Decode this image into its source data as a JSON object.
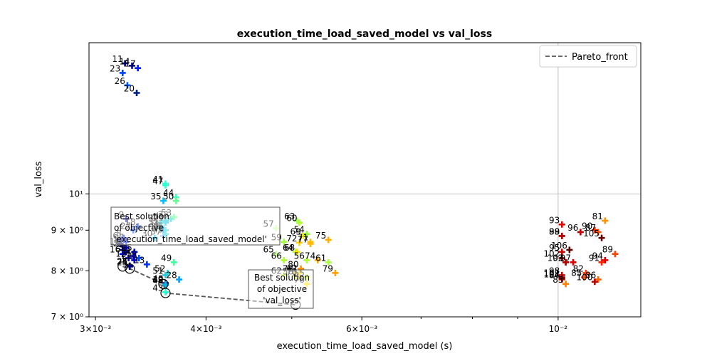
{
  "chart_data": {
    "type": "scatter",
    "title": "execution_time_load_saved_model vs val_loss",
    "xlabel": "execution_time_load_saved_model (s)",
    "ylabel": "val_loss",
    "xscale": "log",
    "yscale": "log",
    "xlim": [
      0.00295,
      0.0124
    ],
    "ylim": [
      7.0,
      15.5
    ],
    "grid": "major",
    "xticks": [
      {
        "value": 0.003,
        "label": "3×10⁻³"
      },
      {
        "value": 0.004,
        "label": "4×10⁻³"
      },
      {
        "value": 0.006,
        "label": "6×10⁻³"
      },
      {
        "value": 0.01,
        "label": "10⁻²"
      }
    ],
    "yticks": [
      {
        "value": 7,
        "label": "7 × 10⁰"
      },
      {
        "value": 8,
        "label": "8 × 10⁰"
      },
      {
        "value": 9,
        "label": "9 × 10⁰"
      },
      {
        "value": 10,
        "label": "10¹"
      }
    ],
    "legend": {
      "placement": "top-right",
      "entries": [
        "Pareto_front"
      ]
    },
    "pareto_front": [
      {
        "x": 0.00322,
        "y": 8.1
      },
      {
        "x": 0.00328,
        "y": 8.05
      },
      {
        "x": 0.00358,
        "y": 7.7
      },
      {
        "x": 0.0036,
        "y": 7.5
      },
      {
        "x": 0.00505,
        "y": 7.25
      }
    ],
    "points": [
      {
        "label": "1",
        "x": 0.0032,
        "y": 8.65,
        "color": "#00008b"
      },
      {
        "label": "2",
        "x": 0.00322,
        "y": 8.5,
        "color": "#000099"
      },
      {
        "label": "3",
        "x": 0.00325,
        "y": 8.45,
        "color": "#0000aa"
      },
      {
        "label": "4",
        "x": 0.00331,
        "y": 8.35,
        "color": "#0000c0"
      },
      {
        "label": "5",
        "x": 0.00328,
        "y": 8.1,
        "color": "#0000d0"
      },
      {
        "label": "6",
        "x": 0.0032,
        "y": 8.75,
        "color": "#0010e0"
      },
      {
        "label": "7",
        "x": 0.00325,
        "y": 8.7,
        "color": "#0020ee"
      },
      {
        "label": "8",
        "x": 0.00323,
        "y": 8.8,
        "color": "#0028f5"
      },
      {
        "label": "9",
        "x": 0.00325,
        "y": 9.3,
        "color": "#0000aa"
      },
      {
        "label": "10",
        "x": 0.00322,
        "y": 8.6,
        "color": "#0000b5"
      },
      {
        "label": "11",
        "x": 0.00324,
        "y": 14.6,
        "color": "#00007a"
      },
      {
        "label": "12",
        "x": 0.00327,
        "y": 8.3,
        "color": "#0000c8"
      },
      {
        "label": "13",
        "x": 0.00343,
        "y": 8.15,
        "color": "#0030ff"
      },
      {
        "label": "14",
        "x": 0.0033,
        "y": 14.5,
        "color": "#000090"
      },
      {
        "label": "15",
        "x": 0.00332,
        "y": 8.45,
        "color": "#0008e0"
      },
      {
        "label": "16",
        "x": 0.00322,
        "y": 8.4,
        "color": "#0010e8"
      },
      {
        "label": "17",
        "x": 0.00335,
        "y": 14.4,
        "color": "#0018f5"
      },
      {
        "label": "18",
        "x": 0.00335,
        "y": 9.1,
        "color": "#0040ff"
      },
      {
        "label": "19",
        "x": 0.00336,
        "y": 8.3,
        "color": "#0048ff"
      },
      {
        "label": "20",
        "x": 0.00334,
        "y": 13.4,
        "color": "#002080"
      },
      {
        "label": "21",
        "x": 0.00325,
        "y": 8.55,
        "color": "#0000a0"
      },
      {
        "label": "22",
        "x": 0.00332,
        "y": 8.25,
        "color": "#0000b8"
      },
      {
        "label": "23",
        "x": 0.00322,
        "y": 14.2,
        "color": "#0040ff"
      },
      {
        "label": "24",
        "x": 0.00328,
        "y": 8.1,
        "color": "#000070"
      },
      {
        "label": "25",
        "x": 0.00328,
        "y": 8.12,
        "color": "#000080"
      },
      {
        "label": "26",
        "x": 0.00326,
        "y": 13.7,
        "color": "#0058ff"
      },
      {
        "label": "27",
        "x": 0.00331,
        "y": 9.0,
        "color": "#0050ff"
      },
      {
        "label": "28",
        "x": 0.00373,
        "y": 7.8,
        "color": "#00a0ff"
      },
      {
        "label": "29",
        "x": 0.0036,
        "y": 9.2,
        "color": "#00b8ff"
      },
      {
        "label": "30",
        "x": 0.0035,
        "y": 8.8,
        "color": "#00c8ff"
      },
      {
        "label": "31",
        "x": 0.00356,
        "y": 9.1,
        "color": "#00d8f0"
      },
      {
        "label": "32",
        "x": 0.00356,
        "y": 9.2,
        "color": "#00e0e0"
      },
      {
        "label": "33",
        "x": 0.00365,
        "y": 9.3,
        "color": "#00d8c8"
      },
      {
        "label": "34",
        "x": 0.00356,
        "y": 9.05,
        "color": "#00b0ff"
      },
      {
        "label": "35",
        "x": 0.00358,
        "y": 9.8,
        "color": "#00c0ff"
      },
      {
        "label": "36",
        "x": 0.00358,
        "y": 9.0,
        "color": "#00a8ff"
      },
      {
        "label": "37",
        "x": 0.00358,
        "y": 8.85,
        "color": "#80b0ff"
      },
      {
        "label": "38",
        "x": 0.0036,
        "y": 9.25,
        "color": "#00c0e0"
      },
      {
        "label": "39",
        "x": 0.0036,
        "y": 7.7,
        "color": "#00c8d0"
      },
      {
        "label": "40",
        "x": 0.0036,
        "y": 7.72,
        "color": "#000080"
      },
      {
        "label": "41",
        "x": 0.0036,
        "y": 10.3,
        "color": "#30ffd0"
      },
      {
        "label": "42",
        "x": 0.0036,
        "y": 7.68,
        "color": "#0080ff"
      },
      {
        "label": "43",
        "x": 0.0036,
        "y": 7.52,
        "color": "#20ffd0"
      },
      {
        "label": "44",
        "x": 0.0037,
        "y": 9.9,
        "color": "#40ffc0"
      },
      {
        "label": "45",
        "x": 0.0036,
        "y": 8.9,
        "color": "#30e0e0"
      },
      {
        "label": "46",
        "x": 0.0036,
        "y": 9.0,
        "color": "#20d0e0"
      },
      {
        "label": "47",
        "x": 0.0036,
        "y": 10.25,
        "color": "#30ffd0"
      },
      {
        "label": "48",
        "x": 0.0036,
        "y": 7.69,
        "color": "#00b8e0"
      },
      {
        "label": "49",
        "x": 0.00368,
        "y": 8.2,
        "color": "#40ffa0"
      },
      {
        "label": "50",
        "x": 0.0037,
        "y": 9.8,
        "color": "#60ff90"
      },
      {
        "label": "51",
        "x": 0.0036,
        "y": 7.9,
        "color": "#20c8e0"
      },
      {
        "label": "52",
        "x": 0.00362,
        "y": 7.95,
        "color": "#30d0d0"
      },
      {
        "label": "53",
        "x": 0.00368,
        "y": 9.35,
        "color": "#50ff80"
      },
      {
        "label": "54",
        "x": 0.0052,
        "y": 8.9,
        "color": "#90ff30"
      },
      {
        "label": "55",
        "x": 0.0052,
        "y": 7.85,
        "color": "#c8ff20"
      },
      {
        "label": "56",
        "x": 0.0052,
        "y": 8.25,
        "color": "#b0ff30"
      },
      {
        "label": "57",
        "x": 0.0048,
        "y": 9.05,
        "color": "#c8ffa0"
      },
      {
        "label": "58",
        "x": 0.00505,
        "y": 7.88,
        "color": "#d0ff20"
      },
      {
        "label": "59",
        "x": 0.0049,
        "y": 8.7,
        "color": "#a0ff40"
      },
      {
        "label": "60",
        "x": 0.0051,
        "y": 9.2,
        "color": "#b0ff20"
      },
      {
        "label": "61",
        "x": 0.0055,
        "y": 8.2,
        "color": "#a8ff40"
      },
      {
        "label": "62",
        "x": 0.0049,
        "y": 7.9,
        "color": "#c0ff30"
      },
      {
        "label": "63",
        "x": 0.00507,
        "y": 9.25,
        "color": "#a0ff50"
      },
      {
        "label": "64",
        "x": 0.00505,
        "y": 8.45,
        "color": "#a0ff40"
      },
      {
        "label": "65",
        "x": 0.0048,
        "y": 8.4,
        "color": "#c8ffa0"
      },
      {
        "label": "66",
        "x": 0.0049,
        "y": 8.25,
        "color": "#b0ff30"
      },
      {
        "label": "67",
        "x": 0.0051,
        "y": 7.95,
        "color": "#ffd000"
      },
      {
        "label": "68",
        "x": 0.00507,
        "y": 8.45,
        "color": "#ffe000"
      },
      {
        "label": "69",
        "x": 0.00515,
        "y": 8.85,
        "color": "#f0ff00"
      },
      {
        "label": "70",
        "x": 0.0051,
        "y": 7.87,
        "color": "#ffe000"
      },
      {
        "label": "71",
        "x": 0.00525,
        "y": 8.7,
        "color": "#ffc000"
      },
      {
        "label": "72",
        "x": 0.0051,
        "y": 8.68,
        "color": "#ffd000"
      },
      {
        "label": "73",
        "x": 0.0051,
        "y": 7.88,
        "color": "#ffd800"
      },
      {
        "label": "74",
        "x": 0.00535,
        "y": 8.25,
        "color": "#ffb000"
      },
      {
        "label": "75",
        "x": 0.0055,
        "y": 8.75,
        "color": "#ffb000"
      },
      {
        "label": "76",
        "x": 0.0052,
        "y": 7.7,
        "color": "#ffe000"
      },
      {
        "label": "77",
        "x": 0.00525,
        "y": 8.65,
        "color": "#ffb800"
      },
      {
        "label": "78",
        "x": 0.00505,
        "y": 7.95,
        "color": "#ffd000"
      },
      {
        "label": "79",
        "x": 0.0056,
        "y": 7.95,
        "color": "#ffa000"
      },
      {
        "label": "80",
        "x": 0.00512,
        "y": 8.05,
        "color": "#ff9000"
      },
      {
        "label": "81",
        "x": 0.0113,
        "y": 9.25,
        "color": "#ff9000"
      },
      {
        "label": "82",
        "x": 0.01075,
        "y": 7.95,
        "color": "#ff4000"
      },
      {
        "label": "83",
        "x": 0.0102,
        "y": 7.7,
        "color": "#ff8000"
      },
      {
        "label": "84",
        "x": 0.0101,
        "y": 7.8,
        "color": "#ff3000"
      },
      {
        "label": "85",
        "x": 0.0107,
        "y": 7.85,
        "color": "#ff5000"
      },
      {
        "label": "86",
        "x": 0.0111,
        "y": 7.8,
        "color": "#ff6000"
      },
      {
        "label": "87",
        "x": 0.0111,
        "y": 8.95,
        "color": "#ff5000"
      },
      {
        "label": "88",
        "x": 0.0101,
        "y": 8.85,
        "color": "#ff2000"
      },
      {
        "label": "89",
        "x": 0.0116,
        "y": 8.4,
        "color": "#ff4000"
      },
      {
        "label": "90",
        "x": 0.011,
        "y": 9.0,
        "color": "#ff3000"
      },
      {
        "label": "91",
        "x": 0.0112,
        "y": 8.2,
        "color": "#ff2000"
      },
      {
        "label": "92",
        "x": 0.0102,
        "y": 8.2,
        "color": "#ff1000"
      },
      {
        "label": "93",
        "x": 0.0101,
        "y": 9.15,
        "color": "#e00000"
      },
      {
        "label": "94",
        "x": 0.0113,
        "y": 8.25,
        "color": "#dd0000"
      },
      {
        "label": "95",
        "x": 0.0101,
        "y": 8.45,
        "color": "#cc0000"
      },
      {
        "label": "96",
        "x": 0.0106,
        "y": 8.95,
        "color": "#bb0000"
      },
      {
        "label": "97",
        "x": 0.0104,
        "y": 8.2,
        "color": "#dd0000"
      },
      {
        "label": "98",
        "x": 0.0101,
        "y": 7.9,
        "color": "#cc0000"
      },
      {
        "label": "99",
        "x": 0.0101,
        "y": 8.85,
        "color": "#aa0000"
      },
      {
        "label": "100",
        "x": 0.011,
        "y": 7.75,
        "color": "#bb0000"
      },
      {
        "label": "101",
        "x": 0.0101,
        "y": 7.85,
        "color": "#990000"
      },
      {
        "label": "102",
        "x": 0.0101,
        "y": 8.3,
        "color": "#880000"
      },
      {
        "label": "103",
        "x": 0.0102,
        "y": 8.2,
        "color": "#aa0000"
      },
      {
        "label": "104",
        "x": 0.0101,
        "y": 7.82,
        "color": "#770000"
      },
      {
        "label": "105",
        "x": 0.0112,
        "y": 8.8,
        "color": "#660000"
      },
      {
        "label": "106",
        "x": 0.0103,
        "y": 8.5,
        "color": "#550000"
      }
    ],
    "pareto_points": [
      {
        "x": 0.00322,
        "y": 8.1
      },
      {
        "x": 0.00328,
        "y": 8.05
      },
      {
        "x": 0.00358,
        "y": 7.7
      },
      {
        "x": 0.0036,
        "y": 7.5
      },
      {
        "x": 0.00505,
        "y": 7.25
      }
    ],
    "annotations": [
      {
        "lines": [
          "Best solution",
          "of objective",
          "'execution_time_load_saved_model'"
        ],
        "x": 0.00322,
        "y": 8.1
      },
      {
        "lines": [
          "Best solution",
          "of objective",
          "'val_loss'"
        ],
        "x": 0.00505,
        "y": 7.25
      }
    ]
  }
}
